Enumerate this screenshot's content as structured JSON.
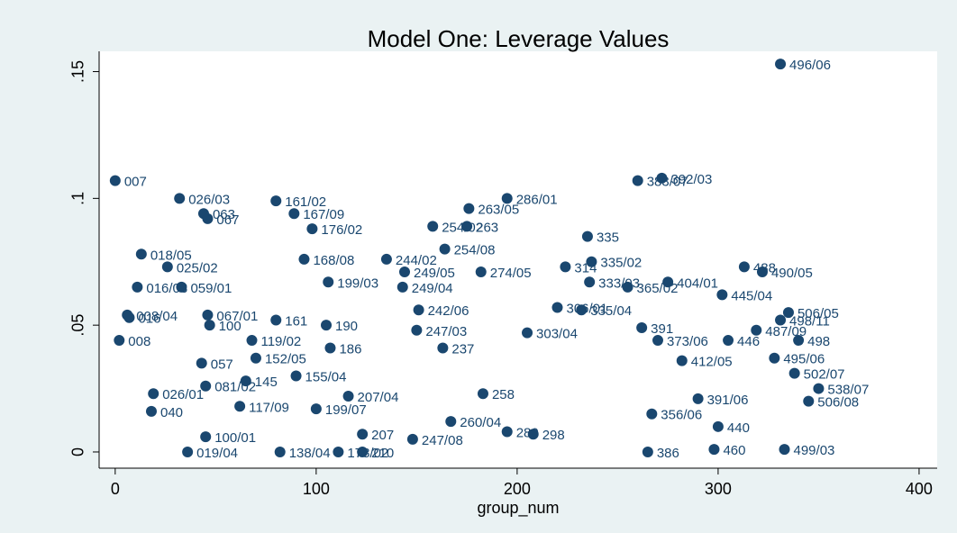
{
  "chart_data": {
    "type": "scatter",
    "title": "Model One: Leverage Values",
    "x_label": "group_num",
    "color": "#1a476f",
    "xlim": [
      -8,
      409
    ],
    "ylim": [
      -0.0064,
      0.158
    ],
    "xticks": [
      0,
      100,
      200,
      300,
      400
    ],
    "yticks": [
      0,
      {
        "value": 0.05,
        "label": ".05"
      },
      {
        "value": 0.1,
        "label": ".1"
      },
      {
        "value": 0.15,
        "label": ".15"
      }
    ],
    "x": [
      331,
      0,
      32,
      44,
      46,
      80,
      89,
      98,
      195,
      176,
      158,
      175,
      260,
      272,
      235,
      164,
      94,
      135,
      144,
      182,
      106,
      143,
      224,
      237,
      313,
      322,
      13,
      26,
      11,
      33,
      6,
      7,
      46,
      47,
      80,
      105,
      151,
      150,
      2,
      43,
      68,
      70,
      107,
      163,
      205,
      262,
      270,
      302,
      331,
      335,
      340,
      305,
      319,
      220,
      232,
      236,
      255,
      275,
      282,
      328,
      338,
      350,
      345,
      265,
      298,
      333,
      36,
      82,
      111,
      123,
      45,
      62,
      100,
      116,
      123,
      148,
      183,
      208,
      267,
      45,
      19,
      18,
      65,
      90,
      167,
      195,
      290,
      300
    ],
    "values": [
      0.153,
      0.107,
      0.1,
      0.094,
      0.092,
      0.099,
      0.094,
      0.088,
      0.1,
      0.096,
      0.089,
      0.089,
      0.107,
      0.108,
      0.085,
      0.08,
      0.076,
      0.076,
      0.071,
      0.071,
      0.067,
      0.065,
      0.073,
      0.075,
      0.073,
      0.071,
      0.078,
      0.073,
      0.065,
      0.065,
      0.054,
      0.053,
      0.054,
      0.05,
      0.052,
      0.05,
      0.056,
      0.048,
      0.044,
      0.035,
      0.044,
      0.037,
      0.041,
      0.041,
      0.047,
      0.049,
      0.044,
      0.062,
      0.052,
      0.055,
      0.044,
      0.044,
      0.048,
      0.057,
      0.056,
      0.067,
      0.065,
      0.067,
      0.036,
      0.037,
      0.031,
      0.025,
      0.02,
      0.0,
      0.001,
      0.001,
      0.0,
      0.0,
      0.0,
      0.0,
      0.006,
      0.018,
      0.017,
      0.022,
      0.007,
      0.005,
      0.023,
      0.007,
      0.015,
      0.026,
      0.023,
      0.016,
      0.028,
      0.03,
      0.012,
      0.008,
      0.021,
      0.01
    ],
    "labels": [
      "496/06",
      "007",
      "026/03",
      "063",
      "067",
      "161/02",
      "167/09",
      "176/02",
      "286/01",
      "263/05",
      "254/02",
      "263",
      "383/07",
      "392/03",
      "335",
      "254/08",
      "168/08",
      "244/02",
      "249/05",
      "274/05",
      "199/03",
      "249/04",
      "314",
      "335/02",
      "488",
      "490/05",
      "018/05",
      "025/02",
      "016/03",
      "059/01",
      "008/04",
      "016",
      "067/01",
      "100",
      "161",
      "190",
      "242/06",
      "247/03",
      "008",
      "057",
      "119/02",
      "152/05",
      "186",
      "237",
      "303/04",
      "391",
      "373/06",
      "445/04",
      "498/11",
      "506/05",
      "498",
      "446",
      "487/09",
      "306/01",
      "335/04",
      "333/03",
      "365/02",
      "404/01",
      "412/05",
      "495/06",
      "502/07",
      "538/07",
      "506/08",
      "386",
      "460",
      "499/03",
      "019/04",
      "138/04",
      "178/02",
      "210",
      "100/01",
      "117/09",
      "199/07",
      "207/04",
      "207",
      "247/08",
      "258",
      "298",
      "356/06",
      "081/02",
      "026/01",
      "040",
      "145",
      "155/04",
      "260/04",
      "280",
      "391/06",
      "440"
    ]
  }
}
